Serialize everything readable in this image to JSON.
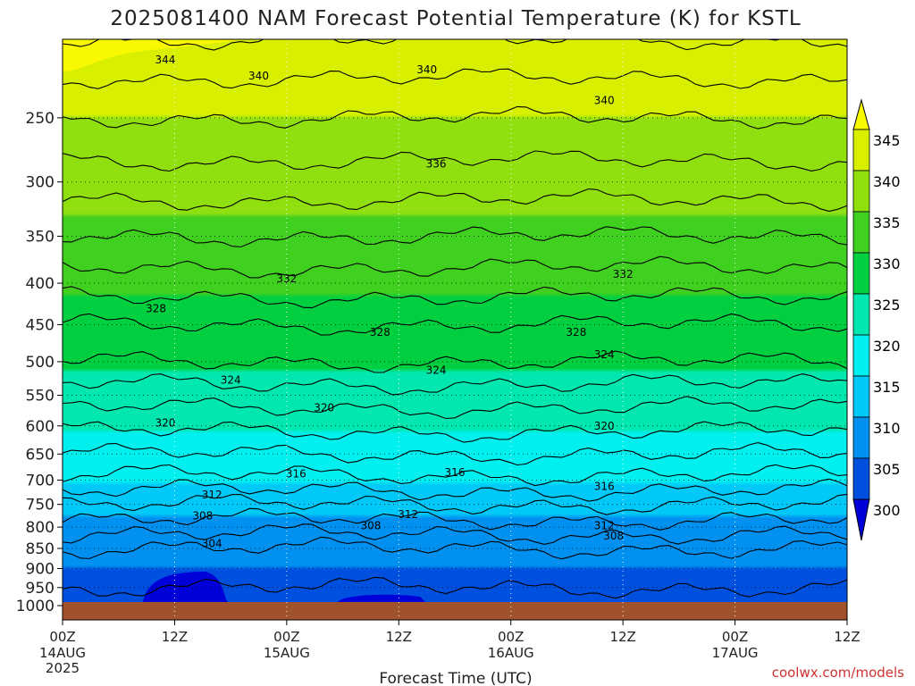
{
  "chart_data": {
    "type": "heatmap",
    "title": "2025081400 NAM Forecast Potential Temperature (K) for KSTL",
    "xlabel": "Forecast Time (UTC)",
    "ylabel": "",
    "y_scale": "log",
    "y_reversed": true,
    "ylim": [
      1000,
      200
    ],
    "y_ticks": [
      250,
      300,
      350,
      400,
      450,
      500,
      550,
      600,
      650,
      700,
      750,
      800,
      850,
      900,
      950,
      1000
    ],
    "x_hours": [
      0,
      12,
      24,
      36,
      48,
      60,
      72,
      84
    ],
    "x_tick_labels": [
      {
        "top": "00Z",
        "mid": "14AUG",
        "bottom": "2025"
      },
      {
        "top": "12Z",
        "mid": "",
        "bottom": ""
      },
      {
        "top": "00Z",
        "mid": "15AUG",
        "bottom": ""
      },
      {
        "top": "12Z",
        "mid": "",
        "bottom": ""
      },
      {
        "top": "00Z",
        "mid": "16AUG",
        "bottom": ""
      },
      {
        "top": "12Z",
        "mid": "",
        "bottom": ""
      },
      {
        "top": "00Z",
        "mid": "17AUG",
        "bottom": ""
      },
      {
        "top": "12Z",
        "mid": "",
        "bottom": ""
      }
    ],
    "theta_profile": {
      "pressure_hPa": [
        1000,
        950,
        900,
        850,
        800,
        750,
        700,
        650,
        600,
        550,
        500,
        450,
        400,
        350,
        300,
        250,
        200
      ],
      "theta_K": [
        303.5,
        304,
        305,
        306,
        309,
        312,
        315.5,
        318,
        320.5,
        323,
        326,
        328,
        331,
        334,
        337,
        340,
        344
      ]
    },
    "color_levels": [
      300,
      305,
      310,
      315,
      320,
      325,
      330,
      335,
      340,
      345
    ],
    "colors": [
      "#0000d8",
      "#0050e0",
      "#0090f0",
      "#00c8f8",
      "#00f0f0",
      "#00e8b0",
      "#00d040",
      "#40d020",
      "#90e010",
      "#d8f000",
      "#f8f800"
    ],
    "colorbar_labels": [
      "345",
      "340",
      "335",
      "330",
      "325",
      "320",
      "315",
      "310",
      "305",
      "300"
    ],
    "contour_labels": [
      {
        "text": "344",
        "hour": 11,
        "p": 212
      },
      {
        "text": "340",
        "hour": 21,
        "p": 222
      },
      {
        "text": "340",
        "hour": 39,
        "p": 218
      },
      {
        "text": "340",
        "hour": 58,
        "p": 238
      },
      {
        "text": "336",
        "hour": 40,
        "p": 285
      },
      {
        "text": "332",
        "hour": 24,
        "p": 395
      },
      {
        "text": "332",
        "hour": 60,
        "p": 390
      },
      {
        "text": "328",
        "hour": 10,
        "p": 430
      },
      {
        "text": "328",
        "hour": 34,
        "p": 460
      },
      {
        "text": "328",
        "hour": 55,
        "p": 460
      },
      {
        "text": "324",
        "hour": 18,
        "p": 527
      },
      {
        "text": "324",
        "hour": 40,
        "p": 512
      },
      {
        "text": "324",
        "hour": 58,
        "p": 490
      },
      {
        "text": "320",
        "hour": 11,
        "p": 595
      },
      {
        "text": "320",
        "hour": 28,
        "p": 570
      },
      {
        "text": "320",
        "hour": 58,
        "p": 600
      },
      {
        "text": "316",
        "hour": 25,
        "p": 688
      },
      {
        "text": "316",
        "hour": 42,
        "p": 685
      },
      {
        "text": "316",
        "hour": 58,
        "p": 713
      },
      {
        "text": "312",
        "hour": 16,
        "p": 730
      },
      {
        "text": "312",
        "hour": 37,
        "p": 772
      },
      {
        "text": "312",
        "hour": 58,
        "p": 797
      },
      {
        "text": "308",
        "hour": 15,
        "p": 775
      },
      {
        "text": "308",
        "hour": 33,
        "p": 797
      },
      {
        "text": "308",
        "hour": 59,
        "p": 820
      },
      {
        "text": "304",
        "hour": 16,
        "p": 838
      }
    ],
    "grid": "dotted",
    "colorbar": "right"
  },
  "credit": "coolwx.com/models"
}
